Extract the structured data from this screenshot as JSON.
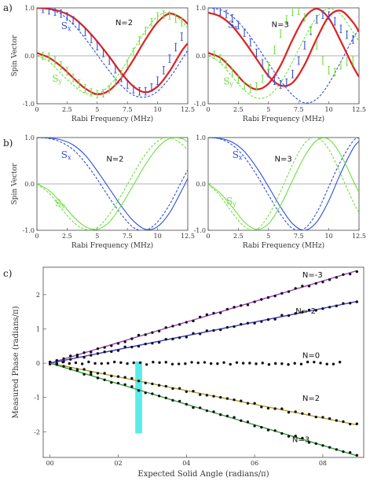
{
  "panels": {
    "a": "a)",
    "b": "b)",
    "c": "c)"
  },
  "colors": {
    "sx": "#2f4fd8",
    "sy": "#6ee040",
    "fit": "#e02020",
    "n_minus3": "#a040c0",
    "n_minus2": "#3c3cd0",
    "n0": "#111111",
    "n2": "#b0a030",
    "n3": "#30a040",
    "highlight": "#40e8e8"
  },
  "chart_data": [
    {
      "id": "a-left",
      "type": "line",
      "xlabel": "Rabi Frequency (MHz)",
      "ylabel": "Spin Vector",
      "annotation": "N=2",
      "sx_label": "Sx",
      "sy_label": "Sy",
      "xlim": [
        0,
        12.5
      ],
      "ylim": [
        -1.0,
        1.0
      ],
      "xticks": [
        "0",
        "2.5",
        "5",
        "7.5",
        "10",
        "12.5"
      ],
      "yticks": [
        "1.0",
        "0.0",
        "-1.0"
      ],
      "series": [
        {
          "name": "Sx",
          "style": "dashed",
          "x": [
            0,
            1,
            2,
            3,
            4,
            5,
            6,
            7,
            8,
            9,
            10,
            11,
            12,
            12.5
          ],
          "y": [
            1.0,
            0.97,
            0.87,
            0.66,
            0.36,
            0.02,
            -0.32,
            -0.62,
            -0.82,
            -0.86,
            -0.74,
            -0.46,
            -0.08,
            0.12
          ]
        },
        {
          "name": "Sy",
          "style": "dashed",
          "x": [
            0,
            1,
            2,
            3,
            4,
            5,
            6,
            7,
            8,
            9,
            10,
            11,
            12,
            12.5
          ],
          "y": [
            0.0,
            -0.12,
            -0.37,
            -0.61,
            -0.78,
            -0.8,
            -0.62,
            -0.3,
            0.12,
            0.52,
            0.82,
            0.9,
            0.72,
            0.58
          ]
        },
        {
          "name": "fit-Sx",
          "style": "fit",
          "x": [
            0,
            1,
            2,
            3,
            4,
            5,
            6,
            7,
            8,
            9,
            10,
            11,
            12,
            12.5
          ],
          "y": [
            1.0,
            0.98,
            0.92,
            0.8,
            0.58,
            0.3,
            -0.02,
            -0.36,
            -0.64,
            -0.76,
            -0.64,
            -0.32,
            0.1,
            0.26
          ]
        },
        {
          "name": "fit-Sy",
          "style": "fit",
          "x": [
            0,
            1,
            2,
            3,
            4,
            5,
            6,
            7,
            8,
            9,
            10,
            11,
            12,
            12.5
          ],
          "y": [
            0.06,
            -0.04,
            -0.22,
            -0.46,
            -0.68,
            -0.8,
            -0.72,
            -0.46,
            -0.08,
            0.34,
            0.7,
            0.88,
            0.78,
            0.66
          ]
        },
        {
          "name": "Sx data",
          "style": "points",
          "x": [
            0.5,
            1,
            1.5,
            2,
            2.5,
            3,
            3.5,
            4,
            4.5,
            5,
            5.5,
            6,
            6.5,
            7,
            7.5,
            8,
            8.5,
            9,
            9.5,
            10,
            10.5,
            11,
            11.5,
            12
          ],
          "y": [
            0.98,
            0.95,
            0.92,
            0.88,
            0.82,
            0.74,
            0.62,
            0.5,
            0.35,
            0.2,
            0.06,
            -0.1,
            -0.28,
            -0.46,
            -0.6,
            -0.7,
            -0.74,
            -0.74,
            -0.66,
            -0.52,
            -0.3,
            -0.06,
            0.18,
            0.4
          ]
        },
        {
          "name": "Sy data",
          "style": "points",
          "x": [
            0.5,
            1,
            1.5,
            2,
            2.5,
            3,
            3.5,
            4,
            4.5,
            5,
            5.5,
            6,
            6.5,
            7,
            7.5,
            8,
            8.5,
            9,
            9.5,
            10,
            10.5,
            11,
            11.5,
            12
          ],
          "y": [
            0.0,
            -0.02,
            -0.1,
            -0.2,
            -0.32,
            -0.46,
            -0.58,
            -0.68,
            -0.76,
            -0.8,
            -0.78,
            -0.7,
            -0.56,
            -0.38,
            -0.16,
            0.08,
            0.32,
            0.52,
            0.7,
            0.82,
            0.86,
            0.84,
            0.78,
            0.7
          ]
        }
      ]
    },
    {
      "id": "a-right",
      "type": "line",
      "xlabel": "Rabi Frequency (MHz)",
      "annotation": "N=3",
      "sx_label": "Sx",
      "sy_label": "Sy",
      "xlim": [
        0,
        12.5
      ],
      "ylim": [
        -1.0,
        1.0
      ],
      "xticks": [
        "0",
        "2.5",
        "5",
        "7.5",
        "10",
        "12.5"
      ],
      "yticks": [
        "1.0",
        "0.0",
        "-1.0"
      ],
      "series": [
        {
          "name": "Sx",
          "style": "dashed",
          "x": [
            0,
            1,
            2,
            3,
            4,
            5,
            6,
            7,
            8,
            9,
            10,
            11,
            12,
            12.5
          ],
          "y": [
            1.0,
            0.96,
            0.82,
            0.56,
            0.22,
            -0.16,
            -0.52,
            -0.82,
            -0.98,
            -0.9,
            -0.58,
            -0.12,
            0.36,
            0.56
          ]
        },
        {
          "name": "Sy",
          "style": "dashed",
          "x": [
            0,
            1,
            2,
            3,
            4,
            5,
            6,
            7,
            8,
            9,
            10,
            11,
            12,
            12.5
          ],
          "y": [
            0.0,
            -0.14,
            -0.44,
            -0.72,
            -0.88,
            -0.84,
            -0.56,
            -0.12,
            0.38,
            0.8,
            0.98,
            0.86,
            0.5,
            0.3
          ]
        },
        {
          "name": "fit-Sx",
          "style": "fit",
          "x": [
            0,
            1,
            2,
            3,
            4,
            5,
            6,
            7,
            8,
            9,
            10,
            11,
            12,
            12.5
          ],
          "y": [
            0.9,
            0.82,
            0.62,
            0.3,
            -0.06,
            -0.42,
            -0.62,
            -0.56,
            -0.18,
            0.36,
            0.82,
            0.94,
            0.7,
            0.5
          ]
        },
        {
          "name": "fit-Sy",
          "style": "fit",
          "x": [
            0,
            1,
            2,
            3,
            4,
            5,
            6,
            7,
            8,
            9,
            10,
            11,
            12,
            12.5
          ],
          "y": [
            0.06,
            -0.04,
            -0.28,
            -0.56,
            -0.7,
            -0.58,
            -0.2,
            0.34,
            0.8,
            0.98,
            0.78,
            0.3,
            -0.22,
            -0.44
          ]
        },
        {
          "name": "Sx data",
          "style": "points",
          "x": [
            0.5,
            1,
            1.5,
            2,
            2.5,
            3,
            3.5,
            4,
            4.5,
            5,
            5.5,
            6,
            6.5,
            7,
            7.5,
            8,
            8.5,
            9,
            9.5,
            10,
            10.5,
            11,
            11.5,
            12
          ],
          "y": [
            0.96,
            0.93,
            0.87,
            0.78,
            0.64,
            0.48,
            0.28,
            0.06,
            -0.16,
            -0.36,
            -0.52,
            -0.6,
            -0.56,
            -0.38,
            -0.1,
            0.22,
            0.52,
            0.76,
            0.86,
            0.84,
            0.72,
            0.56,
            0.44,
            0.34
          ]
        },
        {
          "name": "Sy data",
          "style": "points",
          "x": [
            0.5,
            1,
            1.5,
            2,
            2.5,
            3,
            3.5,
            4,
            4.5,
            5,
            5.5,
            6,
            6.5,
            7,
            7.5,
            8,
            8.5,
            9,
            9.5,
            10,
            10.5,
            11,
            11.5,
            12
          ],
          "y": [
            0.02,
            -0.06,
            -0.18,
            -0.34,
            -0.5,
            -0.62,
            -0.68,
            -0.64,
            -0.48,
            -0.22,
            0.12,
            0.46,
            0.76,
            0.92,
            0.94,
            0.8,
            0.54,
            0.22,
            -0.1,
            -0.3,
            -0.34,
            -0.2,
            -0.12,
            -0.1
          ]
        }
      ]
    },
    {
      "id": "b-left",
      "type": "line",
      "xlabel": "Rabi Frequency (MHz)",
      "ylabel": "Spin Vector",
      "annotation": "N=2",
      "sx_label": "Sx",
      "sy_label": "Sy",
      "xlim": [
        0,
        12.5
      ],
      "ylim": [
        -1.0,
        1.0
      ],
      "xticks": [
        "0",
        "2.5",
        "5",
        "7.5",
        "10",
        "12.5"
      ],
      "yticks": [
        "1.0",
        "0.0",
        "-1.0"
      ],
      "series": [
        {
          "name": "Sx",
          "style": "solid",
          "x": [
            0,
            1,
            2,
            3,
            4,
            5,
            6,
            7,
            8,
            9,
            10,
            11,
            12,
            12.5
          ],
          "y": [
            1.0,
            0.99,
            0.95,
            0.84,
            0.62,
            0.28,
            -0.1,
            -0.48,
            -0.8,
            -0.98,
            -0.92,
            -0.62,
            -0.14,
            0.12
          ]
        },
        {
          "name": "Sx",
          "style": "dashed",
          "x": [
            0,
            1,
            2,
            3,
            4,
            5,
            6,
            7,
            8,
            9,
            10,
            11,
            12,
            12.5
          ],
          "y": [
            1.0,
            0.98,
            0.9,
            0.74,
            0.46,
            0.1,
            -0.3,
            -0.66,
            -0.94,
            -1.0,
            -0.82,
            -0.44,
            0.06,
            0.3
          ]
        },
        {
          "name": "Sy",
          "style": "solid",
          "x": [
            0,
            1,
            2,
            3,
            4,
            5,
            6,
            7,
            8,
            9,
            10,
            11,
            12,
            12.5
          ],
          "y": [
            0.0,
            -0.14,
            -0.4,
            -0.7,
            -0.92,
            -0.98,
            -0.82,
            -0.46,
            -0.02,
            0.42,
            0.78,
            0.98,
            0.98,
            0.9
          ]
        },
        {
          "name": "Sy",
          "style": "dashed",
          "x": [
            0,
            1,
            2,
            3,
            4,
            5,
            6,
            7,
            8,
            9,
            10,
            11,
            12,
            12.5
          ],
          "y": [
            0.0,
            -0.2,
            -0.52,
            -0.82,
            -0.98,
            -0.94,
            -0.66,
            -0.24,
            0.22,
            0.64,
            0.92,
            1.0,
            0.86,
            0.72
          ]
        }
      ]
    },
    {
      "id": "b-right",
      "type": "line",
      "xlabel": "Rabi Frequency (MHz)",
      "annotation": "N=3",
      "sx_label": "Sx",
      "sy_label": "Sy",
      "xlim": [
        0,
        12.5
      ],
      "ylim": [
        -1.0,
        1.0
      ],
      "xticks": [
        "0",
        "2.5",
        "5",
        "7.5",
        "10",
        "12.5"
      ],
      "yticks": [
        "1.0",
        "0.0",
        "-1.0"
      ],
      "series": [
        {
          "name": "Sx",
          "style": "solid",
          "x": [
            0,
            1,
            2,
            3,
            4,
            5,
            6,
            7,
            8,
            9,
            10,
            11,
            12,
            12.5
          ],
          "y": [
            1.0,
            0.98,
            0.9,
            0.7,
            0.36,
            -0.06,
            -0.5,
            -0.86,
            -1.0,
            -0.82,
            -0.36,
            0.24,
            0.76,
            0.92
          ]
        },
        {
          "name": "Sx",
          "style": "dashed",
          "x": [
            0,
            1,
            2,
            3,
            4,
            5,
            6,
            7,
            8,
            9,
            10,
            11,
            12,
            12.5
          ],
          "y": [
            1.0,
            0.97,
            0.84,
            0.58,
            0.2,
            -0.24,
            -0.66,
            -0.96,
            -0.96,
            -0.62,
            -0.06,
            0.5,
            0.92,
            1.0
          ]
        },
        {
          "name": "Sy",
          "style": "solid",
          "x": [
            0,
            1,
            2,
            3,
            4,
            5,
            6,
            7,
            8,
            9,
            10,
            11,
            12,
            12.5
          ],
          "y": [
            0.0,
            -0.2,
            -0.5,
            -0.82,
            -0.98,
            -0.86,
            -0.46,
            0.08,
            0.6,
            0.94,
            0.96,
            0.62,
            0.08,
            -0.18
          ]
        },
        {
          "name": "Sy",
          "style": "dashed",
          "x": [
            0,
            1,
            2,
            3,
            4,
            5,
            6,
            7,
            8,
            9,
            10,
            11,
            12,
            12.5
          ],
          "y": [
            0.0,
            -0.26,
            -0.62,
            -0.92,
            -0.98,
            -0.68,
            -0.16,
            0.42,
            0.88,
            1.0,
            0.74,
            0.2,
            -0.38,
            -0.62
          ]
        }
      ]
    },
    {
      "id": "c",
      "type": "scatter",
      "xlabel": "Expected Solid Angle (radians/π)",
      "ylabel": "Measured Phase (radians/π)",
      "xlim": [
        -0.02,
        0.92
      ],
      "ylim": [
        -2.75,
        2.8
      ],
      "xticks": [
        "00",
        "02",
        "04",
        "06",
        "08"
      ],
      "yticks": [
        "2",
        "1",
        "0",
        "-1",
        "-2"
      ],
      "highlight_x": [
        0.25,
        0.27
      ],
      "series": [
        {
          "name": "N=-3",
          "slope": 3.0,
          "x_max": 0.9
        },
        {
          "name": "N=-2",
          "slope": 2.0,
          "x_max": 0.9
        },
        {
          "name": "N=0",
          "slope": 0.0,
          "x_max": 0.85
        },
        {
          "name": "N=2",
          "slope": -2.0,
          "x_max": 0.9
        },
        {
          "name": "N=3",
          "slope": -3.0,
          "x_max": 0.9
        }
      ]
    }
  ]
}
